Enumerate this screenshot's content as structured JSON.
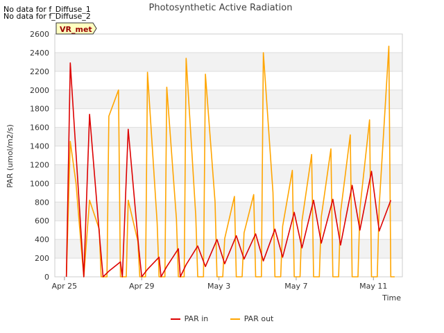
{
  "notes": [
    "No data for f_Diffuse_1",
    "No data for f_Diffuse_2"
  ],
  "badge": "VR_met",
  "chart_data": {
    "type": "line",
    "title": "Photosynthetic Active Radiation",
    "xlabel": "Time",
    "ylabel": "PAR (umol/m2/s)",
    "xlim": [
      -0.5,
      17.5
    ],
    "ylim": [
      0,
      2600
    ],
    "yticks": [
      0,
      200,
      400,
      600,
      800,
      1000,
      1200,
      1400,
      1600,
      1800,
      2000,
      2200,
      2400,
      2600
    ],
    "xticks": [
      {
        "value": 0,
        "label": "Apr 25"
      },
      {
        "value": 4,
        "label": "Apr 29"
      },
      {
        "value": 8,
        "label": "May 3"
      },
      {
        "value": 12,
        "label": "May 7"
      },
      {
        "value": 16,
        "label": "May 11"
      }
    ],
    "bands": true,
    "legend": "bottom-center",
    "series": [
      {
        "name": "PAR in",
        "color": "#dd0000",
        "points": [
          [
            0.1,
            0
          ],
          [
            0.3,
            2290
          ],
          [
            0.85,
            500
          ],
          [
            1.0,
            0
          ],
          [
            1.3,
            1740
          ],
          [
            1.85,
            350
          ],
          [
            2.0,
            0
          ],
          [
            2.3,
            60
          ],
          [
            2.9,
            160
          ],
          [
            3.0,
            0
          ],
          [
            3.3,
            1580
          ],
          [
            3.85,
            300
          ],
          [
            4.0,
            0
          ],
          [
            4.3,
            80
          ],
          [
            4.9,
            210
          ],
          [
            5.0,
            0
          ],
          [
            5.3,
            110
          ],
          [
            5.9,
            300
          ],
          [
            6.0,
            0
          ],
          [
            6.3,
            130
          ],
          [
            6.9,
            330
          ],
          [
            7.3,
            110
          ],
          [
            7.9,
            400
          ],
          [
            8.3,
            140
          ],
          [
            8.9,
            440
          ],
          [
            9.3,
            190
          ],
          [
            9.9,
            460
          ],
          [
            10.3,
            170
          ],
          [
            10.9,
            510
          ],
          [
            11.3,
            210
          ],
          [
            11.9,
            690
          ],
          [
            12.3,
            310
          ],
          [
            12.9,
            820
          ],
          [
            13.3,
            360
          ],
          [
            13.9,
            830
          ],
          [
            14.3,
            340
          ],
          [
            14.9,
            980
          ],
          [
            15.3,
            500
          ],
          [
            15.9,
            1130
          ],
          [
            16.3,
            490
          ],
          [
            16.9,
            820
          ]
        ]
      },
      {
        "name": "PAR out",
        "color": "#ffa500",
        "points": [
          [
            0.1,
            0
          ],
          [
            0.3,
            1450
          ],
          [
            0.6,
            1000
          ],
          [
            0.85,
            360
          ],
          [
            1.0,
            0
          ],
          [
            1.3,
            820
          ],
          [
            1.8,
            510
          ],
          [
            1.9,
            0
          ],
          [
            2.2,
            0
          ],
          [
            2.3,
            1720
          ],
          [
            2.8,
            2000
          ],
          [
            2.9,
            0
          ],
          [
            3.2,
            0
          ],
          [
            3.3,
            820
          ],
          [
            3.8,
            380
          ],
          [
            3.9,
            0
          ],
          [
            4.2,
            0
          ],
          [
            4.3,
            2190
          ],
          [
            4.8,
            580
          ],
          [
            4.9,
            0
          ],
          [
            5.2,
            0
          ],
          [
            5.3,
            2030
          ],
          [
            5.8,
            620
          ],
          [
            5.9,
            0
          ],
          [
            6.2,
            0
          ],
          [
            6.3,
            2340
          ],
          [
            6.8,
            650
          ],
          [
            6.9,
            0
          ],
          [
            7.2,
            0
          ],
          [
            7.3,
            2170
          ],
          [
            7.8,
            800
          ],
          [
            7.9,
            0
          ],
          [
            8.2,
            0
          ],
          [
            8.3,
            410
          ],
          [
            8.8,
            860
          ],
          [
            8.9,
            0
          ],
          [
            9.2,
            0
          ],
          [
            9.3,
            470
          ],
          [
            9.8,
            880
          ],
          [
            9.9,
            0
          ],
          [
            10.2,
            0
          ],
          [
            10.3,
            2400
          ],
          [
            10.8,
            900
          ],
          [
            10.9,
            0
          ],
          [
            11.2,
            0
          ],
          [
            11.3,
            540
          ],
          [
            11.8,
            1140
          ],
          [
            11.9,
            0
          ],
          [
            12.2,
            0
          ],
          [
            12.3,
            600
          ],
          [
            12.8,
            1310
          ],
          [
            12.9,
            0
          ],
          [
            13.2,
            0
          ],
          [
            13.3,
            640
          ],
          [
            13.8,
            1370
          ],
          [
            13.9,
            0
          ],
          [
            14.2,
            0
          ],
          [
            14.3,
            690
          ],
          [
            14.8,
            1520
          ],
          [
            14.9,
            0
          ],
          [
            15.2,
            0
          ],
          [
            15.3,
            730
          ],
          [
            15.8,
            1680
          ],
          [
            15.9,
            0
          ],
          [
            16.2,
            0
          ],
          [
            16.3,
            760
          ],
          [
            16.8,
            2470
          ],
          [
            16.9,
            0
          ],
          [
            17.1,
            0
          ]
        ]
      }
    ]
  }
}
